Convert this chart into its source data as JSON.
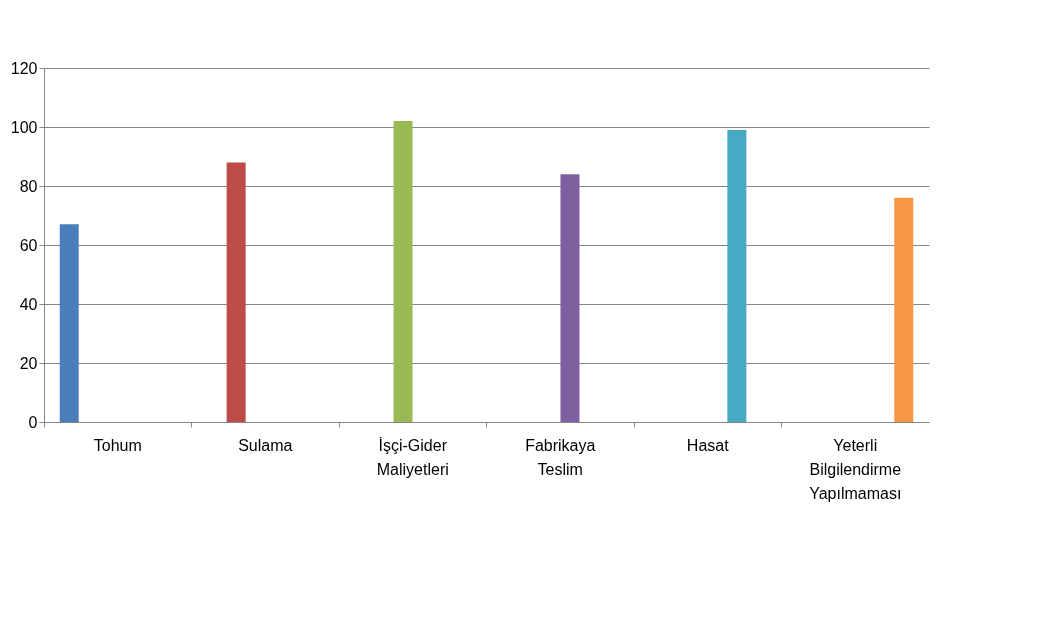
{
  "chart_data": {
    "type": "bar",
    "categories": [
      "Tohum",
      "Sulama",
      "İşçi-Gider Maliyetleri",
      "Fabrikaya Teslim",
      "Hasat",
      "Yeterli Bilgilendirme Yapılmaması"
    ],
    "values": [
      67,
      88,
      102,
      84,
      99,
      76
    ],
    "colors": [
      "#4a7ebb",
      "#be4b48",
      "#98b954",
      "#7d60a0",
      "#46aac5",
      "#f79646"
    ],
    "ylim": [
      0,
      120
    ],
    "yticks": [
      0,
      20,
      40,
      60,
      80,
      100,
      120
    ],
    "grid": "y"
  }
}
